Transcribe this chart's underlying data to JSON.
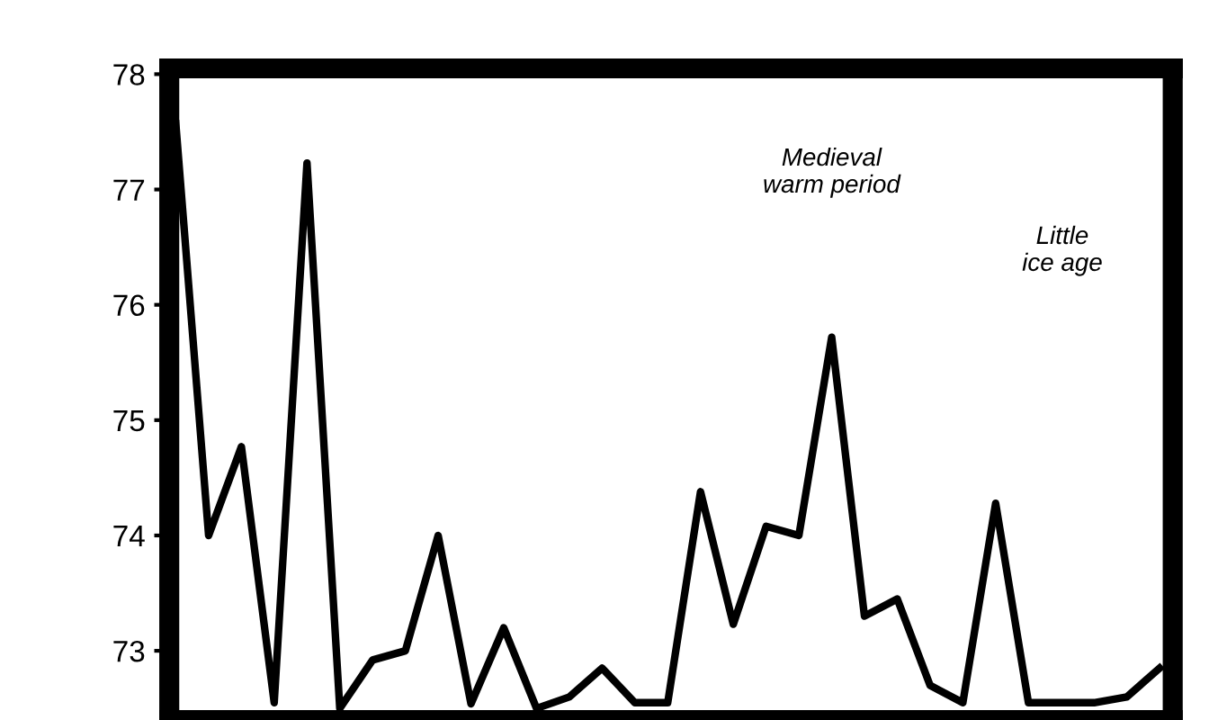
{
  "chart_data": {
    "type": "line",
    "categories": [
      null,
      null,
      null,
      null,
      null,
      null,
      null,
      null,
      null,
      null,
      null,
      null,
      null,
      null,
      null,
      null,
      null,
      null,
      null,
      null,
      null,
      null,
      null,
      null,
      null,
      null,
      null,
      null,
      null,
      null,
      null
    ],
    "series": [
      {
        "color": "#000000",
        "values": [
          77.57,
          74.0,
          74.77,
          72.55,
          77.23,
          72.5,
          72.92,
          73.0,
          74.0,
          72.54,
          73.2,
          72.5,
          72.6,
          72.85,
          72.55,
          72.55,
          74.38,
          73.23,
          74.08,
          74.0,
          75.72,
          73.3,
          73.45,
          72.7,
          72.55,
          74.28,
          72.55,
          72.55,
          72.55,
          72.6,
          72.85
        ]
      }
    ],
    "ylim": [
      72.4,
      78.05
    ],
    "yticks": [
      73,
      74,
      75,
      76,
      77,
      78
    ],
    "tick_labels": "y",
    "grid": false,
    "annotations": [
      "Medieval\nwarm period",
      "Little\nice age"
    ]
  }
}
